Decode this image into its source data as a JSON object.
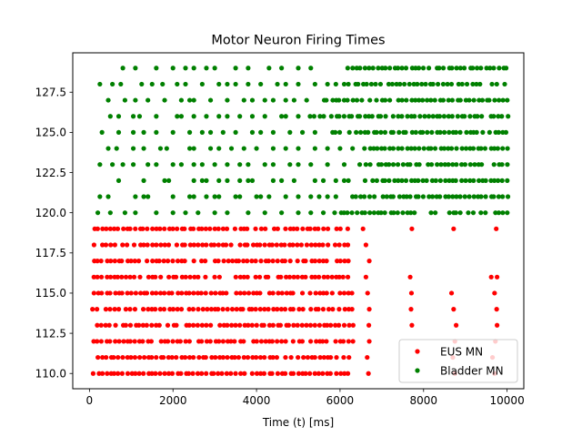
{
  "chart_data": {
    "type": "scatter",
    "title": "Motor Neuron Firing Times",
    "xlabel": "Time (t) [ms]",
    "ylabel": "",
    "xlim": [
      -400,
      10400
    ],
    "ylim": [
      109.05,
      129.95
    ],
    "xticks": [
      0,
      2000,
      4000,
      6000,
      8000,
      10000
    ],
    "xtick_labels": [
      "0",
      "2000",
      "4000",
      "6000",
      "8000",
      "10000"
    ],
    "yticks": [
      110.0,
      112.5,
      115.0,
      117.5,
      120.0,
      122.5,
      125.0,
      127.5
    ],
    "ytick_labels": [
      "110.0",
      "112.5",
      "115.0",
      "117.5",
      "120.0",
      "122.5",
      "125.0",
      "127.5"
    ],
    "grid": false,
    "legend_position": "lower right",
    "series": [
      {
        "name": "EUS MN",
        "color": "#ff0000",
        "marker": "circle",
        "points": [
          {
            "neuron": 110,
            "dense_range": [
              100,
              6280
            ],
            "approx_spacing_ms": 100,
            "extra_spikes": [
              6680,
              8750,
              9700
            ]
          },
          {
            "neuron": 111,
            "dense_range": [
              100,
              6260
            ],
            "approx_spacing_ms": 100,
            "extra_spikes": [
              6650,
              8700,
              9650
            ]
          },
          {
            "neuron": 112,
            "dense_range": [
              100,
              6300
            ],
            "approx_spacing_ms": 100,
            "extra_spikes": [
              6700,
              8750,
              9720
            ]
          },
          {
            "neuron": 113,
            "dense_range": [
              100,
              6350
            ],
            "approx_spacing_ms": 100,
            "extra_spikes": [
              6690,
              7720,
              8780,
              9760
            ]
          },
          {
            "neuron": 114,
            "dense_range": [
              100,
              6330
            ],
            "approx_spacing_ms": 100,
            "extra_spikes": [
              6700,
              7700,
              8720,
              9750
            ]
          },
          {
            "neuron": 115,
            "dense_range": [
              100,
              6300
            ],
            "approx_spacing_ms": 100,
            "extra_spikes": [
              6660,
              7710,
              8670,
              9700
            ]
          },
          {
            "neuron": 116,
            "dense_range": [
              100,
              6290
            ],
            "approx_spacing_ms": 100,
            "extra_spikes": [
              6620,
              7680,
              9620,
              9760
            ]
          },
          {
            "neuron": 117,
            "dense_range": [
              100,
              6240
            ],
            "approx_spacing_ms": 100,
            "extra_spikes": [
              6700
            ]
          },
          {
            "neuron": 118,
            "dense_range": [
              100,
              6250
            ],
            "approx_spacing_ms": 100,
            "extra_spikes": [
              6620
            ]
          },
          {
            "neuron": 119,
            "dense_range": [
              100,
              6250
            ],
            "approx_spacing_ms": 100,
            "extra_spikes": [
              6550,
              7720,
              8720,
              9740
            ]
          }
        ]
      },
      {
        "name": "Bladder MN",
        "color": "#008000",
        "marker": "circle",
        "points": [
          {
            "neuron": 120,
            "dense_range": [
              5900,
              10000
            ],
            "approx_spacing_ms": 100,
            "extra_spikes": [
              200,
              500,
              850,
              1100,
              1600,
              2000,
              2300,
              2600,
              3000,
              3300,
              3800,
              4200,
              4600,
              5000,
              5300,
              5600
            ]
          },
          {
            "neuron": 121,
            "dense_range": [
              6200,
              10000
            ],
            "approx_spacing_ms": 100,
            "extra_spikes": [
              250,
              450,
              1100,
              1300,
              1400,
              2000,
              2400,
              2500,
              2800,
              3000,
              3100,
              3500,
              3600,
              4000,
              4100,
              4300,
              4700,
              5000,
              5300,
              5500,
              5700,
              5900
            ]
          },
          {
            "neuron": 122,
            "dense_range": [
              6800,
              10000
            ],
            "approx_spacing_ms": 100,
            "extra_spikes": [
              700,
              1300,
              1800,
              1900,
              2500,
              2700,
              2800,
              3100,
              3300,
              3600,
              3800,
              3900,
              4400,
              4600,
              4900,
              5400,
              5600,
              5900,
              6100,
              6200,
              6600
            ]
          },
          {
            "neuron": 123,
            "dense_range": [
              6500,
              10000
            ],
            "approx_spacing_ms": 100,
            "extra_spikes": [
              250,
              550,
              800,
              1050,
              1400,
              1600,
              2000,
              2200,
              2500,
              2700,
              3000,
              3300,
              3600,
              3800,
              4200,
              4400,
              4800,
              5000,
              5300,
              5700,
              6100
            ]
          },
          {
            "neuron": 124,
            "dense_range": [
              6600,
              10000
            ],
            "approx_spacing_ms": 100,
            "extra_spikes": [
              450,
              650,
              1050,
              1300,
              1700,
              1850,
              2400,
              2500,
              2900,
              3100,
              3400,
              3700,
              4000,
              4400,
              4700,
              5000,
              5400,
              5700,
              6000,
              6300
            ]
          },
          {
            "neuron": 125,
            "dense_range": [
              5800,
              10000
            ],
            "approx_spacing_ms": 100,
            "extra_spikes": [
              300,
              700,
              1050,
              1300,
              1600,
              2000,
              2400,
              2700,
              2900,
              3200,
              3500,
              3900,
              4100,
              4400,
              4800,
              5100,
              5400
            ]
          },
          {
            "neuron": 126,
            "dense_range": [
              5300,
              10000
            ],
            "approx_spacing_ms": 100,
            "extra_spikes": [
              500,
              700,
              1050,
              1200,
              1600,
              2100,
              2200,
              2500,
              2800,
              3100,
              3300,
              3600,
              3900,
              4200,
              4600,
              4700,
              5000
            ]
          },
          {
            "neuron": 127,
            "dense_range": [
              5600,
              10000
            ],
            "approx_spacing_ms": 100,
            "extra_spikes": [
              450,
              850,
              1100,
              1400,
              1800,
              2200,
              2400,
              2500,
              2900,
              3300,
              3700,
              3900,
              4200,
              4400,
              4700,
              4900,
              5200
            ]
          },
          {
            "neuron": 128,
            "dense_range": [
              6350,
              10000
            ],
            "approx_spacing_ms": 100,
            "extra_spikes": [
              250,
              550,
              750,
              1250,
              1500,
              1750,
              2100,
              2300,
              2700,
              3100,
              3300,
              3500,
              3800,
              4100,
              4500,
              4700,
              5000,
              5400,
              5700,
              5900,
              6100,
              6200
            ]
          },
          {
            "neuron": 129,
            "dense_range": [
              6200,
              10000
            ],
            "approx_spacing_ms": 100,
            "extra_spikes": [
              800,
              1100,
              1600,
              2000,
              2300,
              2500,
              2800,
              3000,
              3500,
              3800,
              4300,
              4600,
              5000,
              5300
            ]
          }
        ]
      }
    ]
  }
}
